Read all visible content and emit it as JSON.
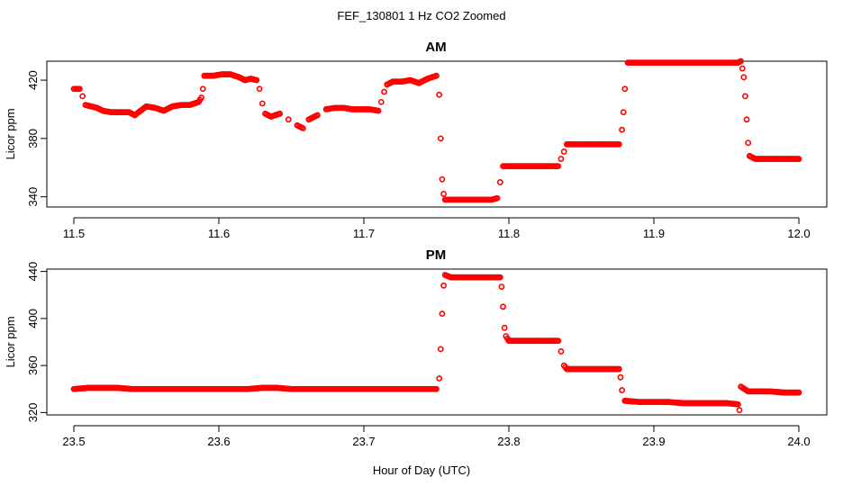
{
  "figure": {
    "title": "FEF_130801  1 Hz CO2 Zoomed",
    "xlabel": "Hour of Day (UTC)",
    "marker_color": "#ff0000"
  },
  "chart_data": [
    {
      "type": "scatter",
      "title": "AM",
      "xlabel": "",
      "ylabel": "Licor ppm",
      "xlim": [
        11.5,
        12.0
      ],
      "ylim": [
        333,
        433
      ],
      "xticks": [
        "11.5",
        "11.6",
        "11.7",
        "11.8",
        "11.9",
        "12.0"
      ],
      "yticks": [
        "340",
        "380",
        "420"
      ],
      "series": [
        {
          "points": [
            [
              11.5,
              414
            ],
            [
              11.502,
              414
            ],
            [
              11.504,
              414
            ],
            [
              11.506,
              409
            ],
            [
              11.508,
              403
            ],
            [
              11.512,
              402
            ],
            [
              11.516,
              401
            ],
            [
              11.52,
              399
            ],
            [
              11.526,
              398
            ],
            [
              11.532,
              398
            ],
            [
              11.538,
              398
            ],
            [
              11.542,
              396
            ],
            [
              11.546,
              399
            ],
            [
              11.55,
              402
            ],
            [
              11.556,
              401
            ],
            [
              11.562,
              399
            ],
            [
              11.568,
              402
            ],
            [
              11.574,
              403
            ],
            [
              11.58,
              403
            ],
            [
              11.586,
              405
            ],
            [
              11.588,
              408
            ],
            [
              11.589,
              414
            ],
            [
              11.59,
              423
            ],
            [
              11.596,
              423
            ],
            [
              11.602,
              424
            ],
            [
              11.608,
              424
            ],
            [
              11.614,
              422
            ],
            [
              11.618,
              420
            ],
            [
              11.622,
              421
            ],
            [
              11.626,
              420
            ],
            [
              11.628,
              414
            ],
            [
              11.63,
              404
            ],
            [
              11.632,
              397
            ],
            [
              11.636,
              395
            ],
            [
              11.642,
              397
            ],
            [
              11.648,
              393
            ],
            [
              11.654,
              389
            ],
            [
              11.658,
              387
            ],
            [
              11.662,
              393
            ],
            [
              11.668,
              396
            ],
            [
              11.674,
              400
            ],
            [
              11.68,
              401
            ],
            [
              11.686,
              401
            ],
            [
              11.692,
              400
            ],
            [
              11.698,
              400
            ],
            [
              11.704,
              400
            ],
            [
              11.71,
              399
            ],
            [
              11.712,
              405
            ],
            [
              11.714,
              412
            ],
            [
              11.716,
              417
            ],
            [
              11.72,
              419
            ],
            [
              11.726,
              419
            ],
            [
              11.732,
              420
            ],
            [
              11.738,
              418
            ],
            [
              11.744,
              421
            ],
            [
              11.75,
              423
            ],
            [
              11.752,
              410
            ],
            [
              11.753,
              380
            ],
            [
              11.754,
              352
            ],
            [
              11.755,
              342
            ],
            [
              11.756,
              338
            ],
            [
              11.762,
              338
            ],
            [
              11.77,
              338
            ],
            [
              11.78,
              338
            ],
            [
              11.788,
              338
            ],
            [
              11.792,
              339
            ],
            [
              11.794,
              350
            ],
            [
              11.796,
              361
            ],
            [
              11.8,
              361
            ],
            [
              11.81,
              361
            ],
            [
              11.82,
              361
            ],
            [
              11.828,
              361
            ],
            [
              11.834,
              361
            ],
            [
              11.836,
              366
            ],
            [
              11.838,
              371
            ],
            [
              11.84,
              376
            ],
            [
              11.85,
              376
            ],
            [
              11.86,
              376
            ],
            [
              11.87,
              376
            ],
            [
              11.876,
              376
            ],
            [
              11.878,
              386
            ],
            [
              11.879,
              398
            ],
            [
              11.88,
              414
            ],
            [
              11.882,
              432
            ],
            [
              11.89,
              432
            ],
            [
              11.9,
              432
            ],
            [
              11.91,
              432
            ],
            [
              11.92,
              432
            ],
            [
              11.93,
              432
            ],
            [
              11.94,
              432
            ],
            [
              11.95,
              432
            ],
            [
              11.958,
              432
            ],
            [
              11.96,
              433
            ],
            [
              11.961,
              428
            ],
            [
              11.962,
              422
            ],
            [
              11.963,
              409
            ],
            [
              11.964,
              393
            ],
            [
              11.965,
              377
            ],
            [
              11.966,
              368
            ],
            [
              11.97,
              366
            ],
            [
              11.98,
              366
            ],
            [
              11.99,
              366
            ],
            [
              12.0,
              366
            ]
          ]
        }
      ]
    },
    {
      "type": "scatter",
      "title": "PM",
      "xlabel": "",
      "ylabel": "Licor ppm",
      "xlim": [
        23.5,
        24.0
      ],
      "ylim": [
        318,
        442
      ],
      "xticks": [
        "23.5",
        "23.6",
        "23.7",
        "23.8",
        "23.9",
        "24.0"
      ],
      "yticks": [
        "320",
        "360",
        "400",
        "440"
      ],
      "series": [
        {
          "points": [
            [
              23.5,
              340
            ],
            [
              23.51,
              341
            ],
            [
              23.52,
              341
            ],
            [
              23.53,
              341
            ],
            [
              23.54,
              340
            ],
            [
              23.55,
              340
            ],
            [
              23.56,
              340
            ],
            [
              23.57,
              340
            ],
            [
              23.58,
              340
            ],
            [
              23.59,
              340
            ],
            [
              23.6,
              340
            ],
            [
              23.61,
              340
            ],
            [
              23.62,
              340
            ],
            [
              23.63,
              341
            ],
            [
              23.64,
              341
            ],
            [
              23.65,
              340
            ],
            [
              23.66,
              340
            ],
            [
              23.67,
              340
            ],
            [
              23.68,
              340
            ],
            [
              23.69,
              340
            ],
            [
              23.7,
              340
            ],
            [
              23.71,
              340
            ],
            [
              23.72,
              340
            ],
            [
              23.73,
              340
            ],
            [
              23.74,
              340
            ],
            [
              23.75,
              340
            ],
            [
              23.752,
              349
            ],
            [
              23.753,
              374
            ],
            [
              23.754,
              404
            ],
            [
              23.755,
              428
            ],
            [
              23.756,
              437
            ],
            [
              23.76,
              435
            ],
            [
              23.77,
              435
            ],
            [
              23.78,
              435
            ],
            [
              23.79,
              435
            ],
            [
              23.794,
              435
            ],
            [
              23.795,
              427
            ],
            [
              23.796,
              410
            ],
            [
              23.797,
              392
            ],
            [
              23.798,
              385
            ],
            [
              23.8,
              381
            ],
            [
              23.81,
              381
            ],
            [
              23.82,
              381
            ],
            [
              23.83,
              381
            ],
            [
              23.834,
              381
            ],
            [
              23.836,
              372
            ],
            [
              23.838,
              360
            ],
            [
              23.84,
              357
            ],
            [
              23.85,
              357
            ],
            [
              23.86,
              357
            ],
            [
              23.87,
              357
            ],
            [
              23.876,
              357
            ],
            [
              23.877,
              350
            ],
            [
              23.878,
              339
            ],
            [
              23.88,
              330
            ],
            [
              23.89,
              329
            ],
            [
              23.9,
              329
            ],
            [
              23.91,
              329
            ],
            [
              23.92,
              328
            ],
            [
              23.93,
              328
            ],
            [
              23.94,
              328
            ],
            [
              23.95,
              328
            ],
            [
              23.958,
              327
            ],
            [
              23.959,
              322
            ],
            [
              23.96,
              342
            ],
            [
              23.965,
              338
            ],
            [
              23.97,
              338
            ],
            [
              23.98,
              338
            ],
            [
              23.99,
              337
            ],
            [
              24.0,
              337
            ]
          ]
        }
      ]
    }
  ]
}
